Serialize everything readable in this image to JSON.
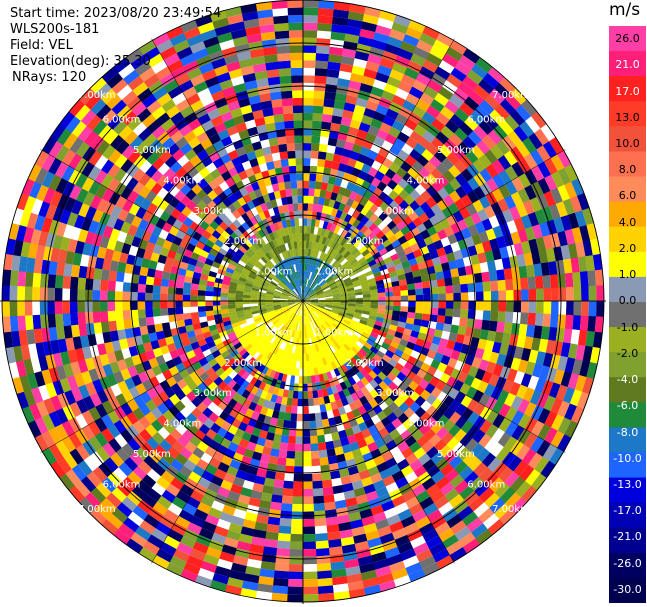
{
  "header": {
    "start_time": "Start time: 2023/08/20 23:49:54",
    "site": "WLS200s-181",
    "field": "Field: VEL",
    "elevation": "Elevation(deg): 35.30",
    "nrays": "NRays: 120"
  },
  "colorbar": {
    "unit": "m/s",
    "ticks": [
      "26.0",
      "21.0",
      "17.0",
      "13.0",
      "10.0",
      "8.0",
      "6.0",
      "4.0",
      "2.0",
      "1.0",
      "0.0",
      "-1.0",
      "-2.0",
      "-4.0",
      "-6.0",
      "-8.0",
      "-10.0",
      "-13.0",
      "-17.0",
      "-21.0",
      "-26.0",
      "-30.0"
    ],
    "colors": [
      "#ff3fa6",
      "#ff1f78",
      "#ff2020",
      "#ff3c28",
      "#f2523a",
      "#ff7050",
      "#ff8a5a",
      "#ffaa00",
      "#ffd200",
      "#ffff00",
      "#8a9ab4",
      "#707070",
      "#9ab020",
      "#80a030",
      "#607a20",
      "#1e8a3a",
      "#1e78c8",
      "#1e64ff",
      "#0000dc",
      "#0000b4",
      "#000090",
      "#000060",
      "#000050"
    ]
  },
  "chart_data": {
    "type": "ppi",
    "field": "VEL",
    "units": "m/s",
    "nrays": 120,
    "range_rings_km": [
      1.0,
      2.0,
      3.0,
      4.0,
      5.0,
      6.0,
      7.0
    ],
    "ring_labels": [
      "1.00km",
      "2.00km",
      "3.00km",
      "4.00km",
      "5.00km",
      "6.00km",
      "7.00km"
    ],
    "vmin": -30.0,
    "vmax": 26.0,
    "max_valid_range_km": 1.6,
    "grid": true
  }
}
